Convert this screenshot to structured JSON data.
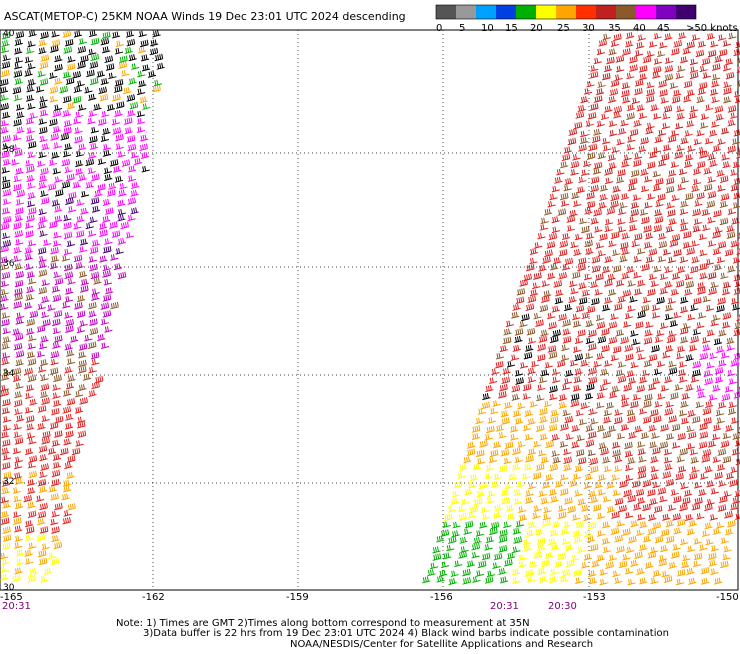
{
  "header": {
    "title": "ASCAT(METOP-C) 25KM NOAA Winds  19 Dec 23:01 UTC 2024 descending"
  },
  "legend": {
    "ticks": [
      "0",
      "5",
      "10",
      "15",
      "20",
      "25",
      "30",
      "35",
      "40",
      "45",
      ">50 knots"
    ],
    "colors": [
      "#555555",
      "#999999",
      "#00a0ff",
      "#0040e0",
      "#00b000",
      "#ffff00",
      "#ffa500",
      "#ff3000",
      "#c02020",
      "#8b5a2b",
      "#ff00ff",
      "#8000c0",
      "#400070"
    ]
  },
  "axes": {
    "x_ticks": [
      "-165",
      "-162",
      "-159",
      "-156",
      "-153",
      "-150"
    ],
    "y_ticks": [
      "40",
      "38",
      "36",
      "34",
      "32",
      "30"
    ]
  },
  "times": [
    "20:31",
    "20:31",
    "20:30"
  ],
  "notes": {
    "line1": "Note: 1) Times are GMT 2)Times along bottom correspond to measurement at 35N",
    "line2": "3)Data buffer is 22 hrs from 19 Dec 23:01 UTC 2024 4) Black wind barbs indicate possible contamination",
    "line3": "NOAA/NESDIS/Center for Satellite Applications and Research"
  },
  "map": {
    "grid": true,
    "swaths": [
      {
        "name": "west",
        "palette": [
          "#000000",
          "#00b000",
          "#ff00ff",
          "#c000c0",
          "#400070",
          "#8b5a2b",
          "#e02020",
          "#ffa500",
          "#ffff00"
        ]
      },
      {
        "name": "east",
        "palette": [
          "#c02020",
          "#e02020",
          "#8b5a2b",
          "#000000",
          "#ff00ff",
          "#ffa500",
          "#ffff00",
          "#00b000"
        ]
      }
    ]
  }
}
